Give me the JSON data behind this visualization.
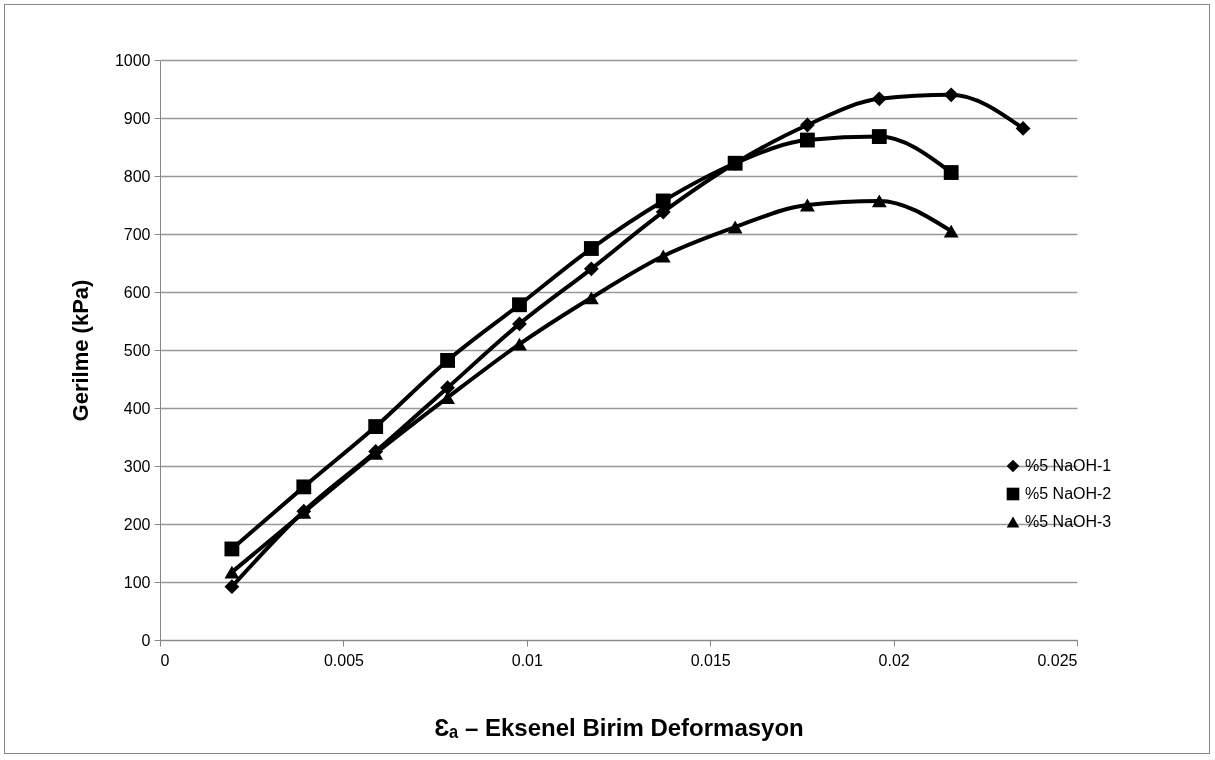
{
  "chart_data": {
    "type": "line",
    "xlabel": "Ɛₐ – Eksenel Birim Deformasyon",
    "ylabel": "Gerilme (kPa)",
    "xlim": [
      0,
      0.025
    ],
    "xticks": [
      0,
      0.005,
      0.01,
      0.015,
      0.02,
      0.025
    ],
    "ylim": [
      0,
      1000
    ],
    "yticks": [
      0,
      100,
      200,
      300,
      400,
      500,
      600,
      700,
      800,
      900,
      1000
    ],
    "grid": "y",
    "legend": "right",
    "line_style": "solid",
    "x": [
      0.00196,
      0.00392,
      0.00588,
      0.00784,
      0.0098,
      0.01176,
      0.01372,
      0.01568,
      0.01765,
      0.01961,
      0.02157,
      0.02353
    ],
    "series": [
      {
        "name": "%5 NaOH-1",
        "color": "#000000",
        "marker": "diamond",
        "values": [
          92,
          222,
          325,
          435,
          545,
          640,
          738,
          822,
          888,
          933,
          940,
          882
        ]
      },
      {
        "name": "%5 NaOH-2",
        "color": "#000000",
        "marker": "square",
        "values": [
          157,
          264,
          368,
          482,
          578,
          675,
          757,
          822,
          862,
          868,
          806,
          null
        ]
      },
      {
        "name": "%5 NaOH-3",
        "color": "#000000",
        "marker": "triangle",
        "values": [
          117,
          220,
          322,
          418,
          510,
          590,
          662,
          712,
          750,
          757,
          705,
          null
        ]
      }
    ]
  }
}
